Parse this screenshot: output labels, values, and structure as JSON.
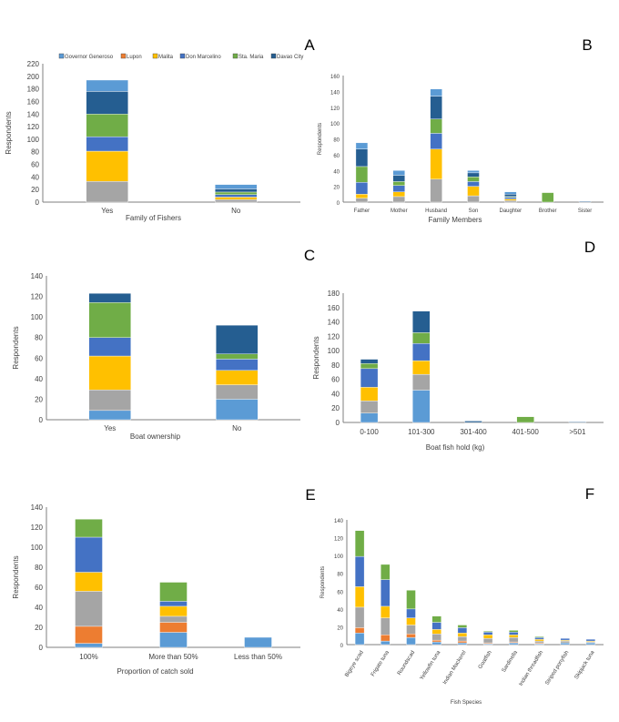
{
  "colors": {
    "Governor Generoso": "#5b9bd5",
    "Lupon": "#ed7d31",
    "Mati": "#a5a5a5",
    "Malita": "#ffc000",
    "Don Marcelino": "#4472c4",
    "Sta. Maria": "#70ad47",
    "Davao City": "#255e91"
  },
  "legend": {
    "items": [
      "Governor Generoso",
      "Lupon",
      "Malita",
      "Don Marcelino",
      "Sta. Maria",
      "Davao City"
    ]
  },
  "chart_data": [
    {
      "panel": "A",
      "type": "bar",
      "stacked": true,
      "xlabel": "Family of Fishers",
      "ylabel": "Respondents",
      "ylim": [
        0,
        220
      ],
      "yticks": [
        0,
        20,
        40,
        60,
        80,
        100,
        120,
        140,
        160,
        180,
        200,
        220
      ],
      "categories": [
        "Yes",
        "No"
      ],
      "series": [
        {
          "key": "Governor Generoso",
          "values": [
            0,
            0
          ]
        },
        {
          "key": "Lupon",
          "values": [
            0,
            0
          ]
        },
        {
          "key": "Mati",
          "values": [
            33,
            4
          ]
        },
        {
          "key": "Malita",
          "values": [
            48,
            4
          ]
        },
        {
          "key": "Don Marcelino",
          "values": [
            23,
            4
          ]
        },
        {
          "key": "Sta. Maria",
          "values": [
            36,
            4
          ]
        },
        {
          "key": "Davao City",
          "values": [
            36,
            5
          ]
        },
        {
          "key": "Governor Generoso",
          "values": [
            18,
            7
          ]
        }
      ]
    },
    {
      "panel": "B",
      "type": "bar",
      "stacked": true,
      "xlabel": "Family Members",
      "ylabel": "Respondents",
      "ylim": [
        0,
        160
      ],
      "yticks": [
        0,
        20,
        40,
        60,
        80,
        100,
        120,
        140,
        160
      ],
      "categories": [
        "Father",
        "Mother",
        "Husband",
        "Son",
        "Daughter",
        "Brother",
        "Sister"
      ],
      "series": [
        {
          "key": "Mati",
          "values": [
            5,
            7,
            29,
            8,
            2,
            0,
            0
          ]
        },
        {
          "key": "Malita",
          "values": [
            5,
            6,
            38,
            12,
            2,
            0,
            0
          ]
        },
        {
          "key": "Don Marcelino",
          "values": [
            15,
            8,
            20,
            6,
            2,
            0,
            0
          ]
        },
        {
          "key": "Sta. Maria",
          "values": [
            20,
            5,
            18,
            6,
            1,
            12,
            0
          ]
        },
        {
          "key": "Davao City",
          "values": [
            22,
            8,
            29,
            5,
            3,
            0,
            1
          ]
        },
        {
          "key": "Governor Generoso",
          "values": [
            8,
            6,
            9,
            3,
            3,
            0,
            0
          ]
        }
      ]
    },
    {
      "panel": "C",
      "type": "bar",
      "stacked": true,
      "xlabel": "Boat ownership",
      "ylabel": "Respondents",
      "ylim": [
        0,
        140
      ],
      "yticks": [
        0,
        20,
        40,
        60,
        80,
        100,
        120,
        140
      ],
      "categories": [
        "Yes",
        "No"
      ],
      "series": [
        {
          "key": "Governor Generoso",
          "values": [
            9,
            20
          ]
        },
        {
          "key": "Mati",
          "values": [
            20,
            14
          ]
        },
        {
          "key": "Malita",
          "values": [
            33,
            14
          ]
        },
        {
          "key": "Don Marcelino",
          "values": [
            18,
            11
          ]
        },
        {
          "key": "Sta. Maria",
          "values": [
            34,
            5
          ]
        },
        {
          "key": "Davao City",
          "values": [
            9,
            28
          ]
        }
      ]
    },
    {
      "panel": "D",
      "type": "bar",
      "stacked": true,
      "xlabel": "Boat fish hold (kg)",
      "ylabel": "Respondents",
      "ylim": [
        0,
        180
      ],
      "yticks": [
        0,
        20,
        40,
        60,
        80,
        100,
        120,
        140,
        160,
        180
      ],
      "categories": [
        "0-100",
        "101-300",
        "301-400",
        "401-500",
        ">501"
      ],
      "series": [
        {
          "key": "Governor Generoso",
          "values": [
            13,
            45,
            0,
            0,
            0
          ]
        },
        {
          "key": "Mati",
          "values": [
            17,
            22,
            0,
            0,
            0
          ]
        },
        {
          "key": "Malita",
          "values": [
            19,
            19,
            0,
            0,
            0
          ]
        },
        {
          "key": "Don Marcelino",
          "values": [
            26,
            24,
            0,
            0,
            0
          ]
        },
        {
          "key": "Sta. Maria",
          "values": [
            7,
            15,
            0,
            8,
            0
          ]
        },
        {
          "key": "Davao City",
          "values": [
            6,
            30,
            2,
            0,
            1
          ]
        }
      ]
    },
    {
      "panel": "E",
      "type": "bar",
      "stacked": true,
      "xlabel": "Proportion of catch sold",
      "ylabel": "Respondents",
      "ylim": [
        0,
        140
      ],
      "yticks": [
        0,
        20,
        40,
        60,
        80,
        100,
        120,
        140
      ],
      "categories": [
        "100%",
        "More than 50%",
        "Less than 50%"
      ],
      "series": [
        {
          "key": "Governor Generoso",
          "values": [
            4,
            15,
            10
          ]
        },
        {
          "key": "Lupon",
          "values": [
            17,
            10,
            0
          ]
        },
        {
          "key": "Mati",
          "values": [
            35,
            6,
            0
          ]
        },
        {
          "key": "Malita",
          "values": [
            19,
            10,
            0
          ]
        },
        {
          "key": "Don Marcelino",
          "values": [
            35,
            5,
            0
          ]
        },
        {
          "key": "Sta. Maria",
          "values": [
            18,
            19,
            0
          ]
        }
      ]
    },
    {
      "panel": "F",
      "type": "bar",
      "stacked": true,
      "xlabel": "Fish Species",
      "ylabel": "Respondents",
      "ylim": [
        0,
        140
      ],
      "yticks": [
        0,
        20,
        40,
        60,
        80,
        100,
        120,
        140
      ],
      "categories": [
        "Bigeye scad",
        "Frigate tuna",
        "Roundscad",
        "Yellowfin tuna",
        "Indian Mackerel",
        "Goatfish",
        "Sardinella",
        "Indian threadfish",
        "Striped ponyfish",
        "Skipjack tuna"
      ],
      "series": [
        {
          "key": "Governor Generoso",
          "values": [
            13,
            4,
            8,
            3,
            2,
            1,
            2,
            1,
            2,
            2
          ]
        },
        {
          "key": "Lupon",
          "values": [
            6,
            7,
            4,
            2,
            2,
            1,
            1,
            1,
            0,
            0
          ]
        },
        {
          "key": "Mati",
          "values": [
            23,
            19,
            10,
            7,
            5,
            5,
            5,
            2,
            2,
            1
          ]
        },
        {
          "key": "Malita",
          "values": [
            23,
            13,
            8,
            5,
            4,
            4,
            3,
            2,
            1,
            1
          ]
        },
        {
          "key": "Don Marcelino",
          "values": [
            34,
            30,
            10,
            8,
            6,
            3,
            3,
            2,
            2,
            2
          ]
        },
        {
          "key": "Sta. Maria",
          "values": [
            29,
            17,
            21,
            7,
            3,
            1,
            2,
            1,
            0,
            0
          ]
        }
      ]
    }
  ]
}
